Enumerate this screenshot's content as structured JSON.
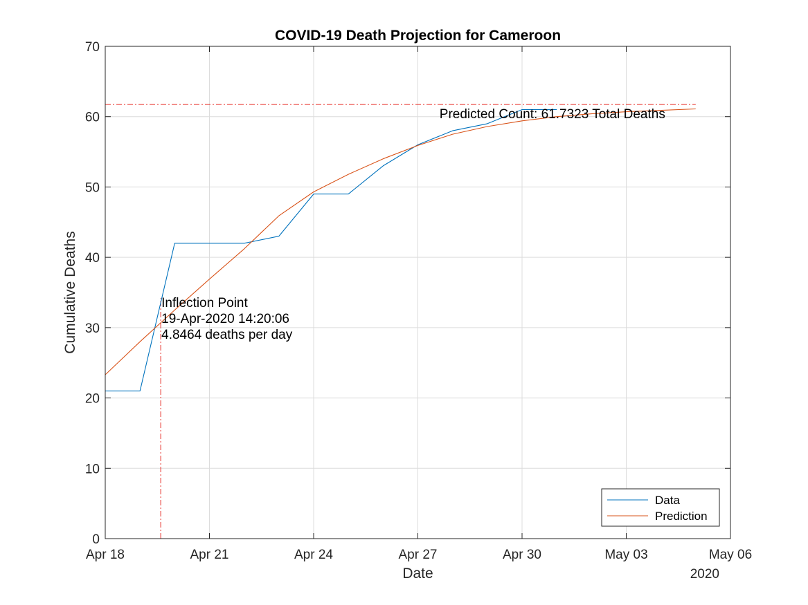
{
  "chart_data": {
    "type": "line",
    "title": "COVID-19 Death Projection for Cameroon",
    "xlabel": "Date",
    "ylabel": "Cumulative Deaths",
    "x_axis_year": "2020",
    "xlim": [
      "2020-04-18",
      "2020-05-06"
    ],
    "ylim": [
      0,
      70
    ],
    "x_ticks": [
      {
        "date": "2020-04-18",
        "label": "Apr 18"
      },
      {
        "date": "2020-04-21",
        "label": "Apr 21"
      },
      {
        "date": "2020-04-24",
        "label": "Apr 24"
      },
      {
        "date": "2020-04-27",
        "label": "Apr 27"
      },
      {
        "date": "2020-04-30",
        "label": "Apr 30"
      },
      {
        "date": "2020-05-03",
        "label": "May 03"
      },
      {
        "date": "2020-05-06",
        "label": "May 06"
      }
    ],
    "y_ticks": [
      0,
      10,
      20,
      30,
      40,
      50,
      60,
      70
    ],
    "grid": true,
    "legend_position": "bottom-right",
    "series": [
      {
        "name": "Data",
        "color": "#0072BD",
        "points": [
          {
            "x": "2020-04-18",
            "y": 21
          },
          {
            "x": "2020-04-19",
            "y": 21
          },
          {
            "x": "2020-04-20",
            "y": 42
          },
          {
            "x": "2020-04-21",
            "y": 42
          },
          {
            "x": "2020-04-22",
            "y": 42
          },
          {
            "x": "2020-04-23",
            "y": 43
          },
          {
            "x": "2020-04-24",
            "y": 49
          },
          {
            "x": "2020-04-25",
            "y": 49
          },
          {
            "x": "2020-04-26",
            "y": 53
          },
          {
            "x": "2020-04-27",
            "y": 56
          },
          {
            "x": "2020-04-28",
            "y": 58
          },
          {
            "x": "2020-04-29",
            "y": 59
          },
          {
            "x": "2020-04-30",
            "y": 61
          },
          {
            "x": "2020-05-01",
            "y": 61
          }
        ]
      },
      {
        "name": "Prediction",
        "color": "#D95319",
        "points": [
          {
            "x": "2020-04-18",
            "y": 23.3
          },
          {
            "x": "2020-04-19",
            "y": 28.0
          },
          {
            "x": "2020-04-20",
            "y": 32.5
          },
          {
            "x": "2020-04-21",
            "y": 36.9
          },
          {
            "x": "2020-04-22",
            "y": 41.2
          },
          {
            "x": "2020-04-23",
            "y": 45.9
          },
          {
            "x": "2020-04-24",
            "y": 49.3
          },
          {
            "x": "2020-04-25",
            "y": 51.8
          },
          {
            "x": "2020-04-26",
            "y": 54.0
          },
          {
            "x": "2020-04-27",
            "y": 55.9
          },
          {
            "x": "2020-04-28",
            "y": 57.5
          },
          {
            "x": "2020-04-29",
            "y": 58.6
          },
          {
            "x": "2020-04-30",
            "y": 59.4
          },
          {
            "x": "2020-05-01",
            "y": 60.0
          },
          {
            "x": "2020-05-02",
            "y": 60.4
          },
          {
            "x": "2020-05-03",
            "y": 60.7
          },
          {
            "x": "2020-05-04",
            "y": 60.9
          },
          {
            "x": "2020-05-05",
            "y": 61.1
          }
        ]
      }
    ],
    "reference_lines": [
      {
        "orientation": "horizontal",
        "y": 61.7323,
        "x_from": "2020-04-18",
        "x_to": "2020-05-05",
        "color": "#E8302A",
        "style": "dash-dot"
      },
      {
        "orientation": "vertical",
        "x": "2020-04-19T14:20:06",
        "y_from": 0,
        "y_to": 34.2,
        "color": "#E8302A",
        "style": "dash-dot"
      }
    ],
    "annotations": {
      "predicted": "Predicted Count: 61.7323 Total Deaths",
      "inflection": [
        "Inflection Point",
        "19-Apr-2020 14:20:06",
        "4.8464 deaths per day"
      ]
    }
  }
}
